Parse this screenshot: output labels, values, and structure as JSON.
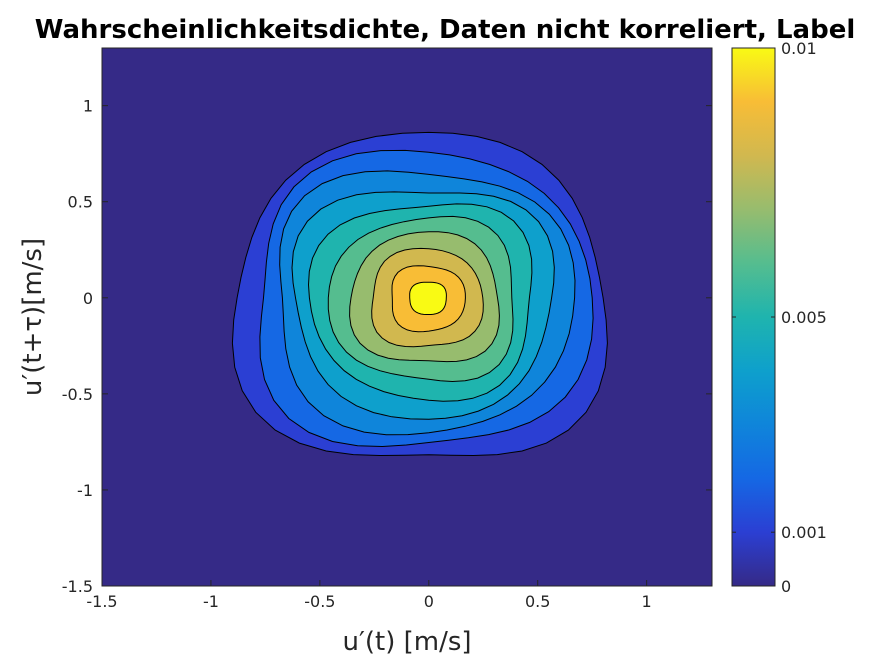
{
  "chart_data": {
    "type": "contourf",
    "title": "Wahrscheinlichkeitsdichte, Daten nicht korreliert, Label",
    "xlabel": "u′(t) [m/s]",
    "ylabel": "u′(t+τ)[m/s]",
    "xlim": [
      -1.5,
      1.3
    ],
    "ylim": [
      -1.5,
      1.3
    ],
    "x_ticks": [
      -1.5,
      -1,
      -0.5,
      0,
      0.5,
      1
    ],
    "x_tick_labels": [
      "-1.5",
      "-1",
      "-0.5",
      "0",
      "0.5",
      "1"
    ],
    "y_ticks": [
      -1.5,
      -1,
      -0.5,
      0,
      0.5,
      1
    ],
    "y_tick_labels": [
      "-1.5",
      "-1",
      "-0.5",
      "0",
      "0.5",
      "1"
    ],
    "colorbar": {
      "range": [
        0,
        0.01
      ],
      "ticks": [
        0,
        0.001,
        0.005,
        0.01
      ],
      "tick_labels": [
        "0",
        "0.001",
        "0.005",
        "0.01"
      ],
      "colormap": "parula"
    },
    "contour_levels": [
      0,
      0.001,
      0.002,
      0.003,
      0.004,
      0.005,
      0.006,
      0.007,
      0.008,
      0.009,
      0.01
    ],
    "peak_center": [
      0.0,
      0.0
    ],
    "outer_contour_extent": {
      "x": [
        -0.88,
        0.8
      ],
      "y": [
        -0.86,
        0.82
      ]
    },
    "grid": false
  },
  "colors": {
    "background_level": "#352a87",
    "levels": [
      "#352a87",
      "#2b3fd3",
      "#1568e4",
      "#0f85da",
      "#0ea0cc",
      "#1fb4ae",
      "#55bd8f",
      "#97bc6e",
      "#d1b84f",
      "#f8bd36",
      "#f9fa14"
    ]
  }
}
